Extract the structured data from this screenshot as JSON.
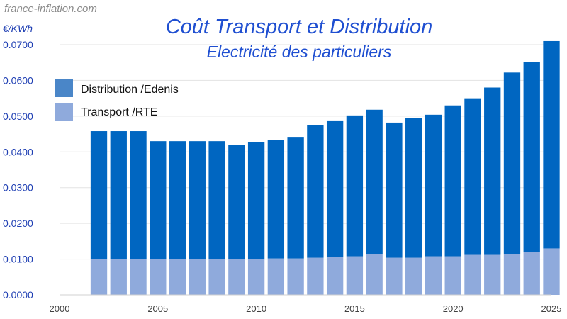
{
  "source_label": "france-inflation.com",
  "chart_data": {
    "type": "bar",
    "stacked": true,
    "title": "Coût Transport et Distribution",
    "subtitle": "Electricité des particuliers",
    "ylabel": "€/KWh",
    "xlabel": "",
    "ylim": [
      0,
      0.07
    ],
    "yticks": [
      "0.0000",
      "0.0100",
      "0.0200",
      "0.0300",
      "0.0400",
      "0.0500",
      "0.0600",
      "0.0700"
    ],
    "xlim": [
      2000,
      2025
    ],
    "xticks": [
      "2000",
      "2005",
      "2010",
      "2015",
      "2020",
      "2025"
    ],
    "grid": true,
    "legend_position": "top-left",
    "categories": [
      2002,
      2003,
      2004,
      2005,
      2006,
      2007,
      2008,
      2009,
      2010,
      2011,
      2012,
      2013,
      2014,
      2015,
      2016,
      2017,
      2018,
      2019,
      2020,
      2021,
      2022,
      2023,
      2024,
      2025
    ],
    "series": [
      {
        "name": "Transport /RTE",
        "color": "#8faadc",
        "values": [
          0.01,
          0.01,
          0.01,
          0.01,
          0.01,
          0.01,
          0.01,
          0.01,
          0.01,
          0.0102,
          0.0102,
          0.0104,
          0.0106,
          0.0108,
          0.0114,
          0.0104,
          0.0104,
          0.0108,
          0.0108,
          0.0112,
          0.0112,
          0.0114,
          0.012,
          0.013
        ]
      },
      {
        "name": "Distribution /Edenis",
        "color": "#0066c1",
        "values": [
          0.0358,
          0.0358,
          0.0358,
          0.033,
          0.033,
          0.033,
          0.033,
          0.032,
          0.0328,
          0.0332,
          0.034,
          0.037,
          0.0382,
          0.0394,
          0.0404,
          0.0378,
          0.039,
          0.0396,
          0.0422,
          0.0438,
          0.0468,
          0.0508,
          0.0532,
          0.058
        ]
      }
    ],
    "legend_order": [
      "Distribution /Edenis",
      "Transport /RTE"
    ],
    "legend_colors": {
      "Distribution /Edenis": "#4a86c8",
      "Transport /RTE": "#8faadc"
    }
  }
}
